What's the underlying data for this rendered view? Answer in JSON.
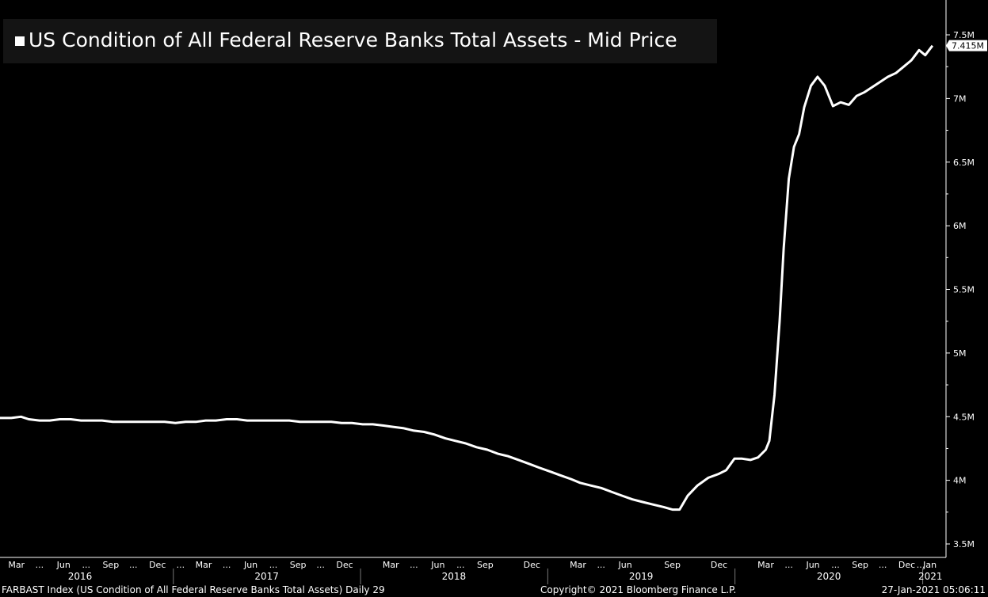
{
  "chart_data": {
    "type": "line",
    "title": "US Condition of All Federal Reserve Banks Total Assets - Mid Price",
    "series_color": "#ffffff",
    "background": "#000000",
    "ylim": [
      3.5,
      7.7
    ],
    "y_ticks": [
      3.5,
      4,
      4.5,
      5,
      5.5,
      6,
      6.5,
      7,
      7.5
    ],
    "y_tick_labels": [
      "3.5M",
      "4M",
      "4.5M",
      "5M",
      "5.5M",
      "6M",
      "6.5M",
      "7M",
      "7.5M"
    ],
    "last_value_label": "7.415M",
    "last_value": 7.415,
    "xlim": [
      "2016-01-29",
      "2021-01-31"
    ],
    "month_ticks": [
      {
        "date": "2016-03-01",
        "label": "Mar"
      },
      {
        "date": "2016-04-15",
        "label": "..."
      },
      {
        "date": "2016-06-01",
        "label": "Jun"
      },
      {
        "date": "2016-07-15",
        "label": "..."
      },
      {
        "date": "2016-09-01",
        "label": "Sep"
      },
      {
        "date": "2016-10-15",
        "label": "..."
      },
      {
        "date": "2016-12-01",
        "label": "Dec"
      },
      {
        "date": "2017-01-15",
        "label": "..."
      },
      {
        "date": "2017-03-01",
        "label": "Mar"
      },
      {
        "date": "2017-04-15",
        "label": "..."
      },
      {
        "date": "2017-06-01",
        "label": "Jun"
      },
      {
        "date": "2017-07-15",
        "label": "..."
      },
      {
        "date": "2017-09-01",
        "label": "Sep"
      },
      {
        "date": "2017-10-15",
        "label": "..."
      },
      {
        "date": "2017-12-01",
        "label": "Dec"
      },
      {
        "date": "2018-03-01",
        "label": "Mar"
      },
      {
        "date": "2018-04-15",
        "label": "..."
      },
      {
        "date": "2018-06-01",
        "label": "Jun"
      },
      {
        "date": "2018-07-15",
        "label": "..."
      },
      {
        "date": "2018-09-01",
        "label": "Sep"
      },
      {
        "date": "2018-12-01",
        "label": "Dec"
      },
      {
        "date": "2019-03-01",
        "label": "Mar"
      },
      {
        "date": "2019-04-15",
        "label": "..."
      },
      {
        "date": "2019-06-01",
        "label": "Jun"
      },
      {
        "date": "2019-09-01",
        "label": "Sep"
      },
      {
        "date": "2019-12-01",
        "label": "Dec"
      },
      {
        "date": "2020-03-01",
        "label": "Mar"
      },
      {
        "date": "2020-04-15",
        "label": "..."
      },
      {
        "date": "2020-06-01",
        "label": "Jun"
      },
      {
        "date": "2020-07-15",
        "label": "..."
      },
      {
        "date": "2020-09-01",
        "label": "Sep"
      },
      {
        "date": "2020-10-15",
        "label": "..."
      },
      {
        "date": "2020-12-01",
        "label": "Dec"
      },
      {
        "date": "2020-12-28",
        "label": "..."
      },
      {
        "date": "2021-01-15",
        "label": "Jan"
      }
    ],
    "year_boundaries": [
      "2017-01-01",
      "2018-01-01",
      "2019-01-01",
      "2020-01-01",
      "2021-01-01"
    ],
    "years": [
      {
        "label": "2016",
        "center": "2016-07-03"
      },
      {
        "label": "2017",
        "center": "2017-07-02"
      },
      {
        "label": "2018",
        "center": "2018-07-02"
      },
      {
        "label": "2019",
        "center": "2019-07-02"
      },
      {
        "label": "2020",
        "center": "2020-07-02"
      },
      {
        "label": "2021",
        "center": "2021-01-16"
      }
    ],
    "points": [
      [
        "2016-01-29",
        4.49
      ],
      [
        "2016-02-20",
        4.49
      ],
      [
        "2016-03-10",
        4.5
      ],
      [
        "2016-03-25",
        4.48
      ],
      [
        "2016-04-15",
        4.47
      ],
      [
        "2016-05-05",
        4.47
      ],
      [
        "2016-05-25",
        4.48
      ],
      [
        "2016-06-15",
        4.48
      ],
      [
        "2016-07-05",
        4.47
      ],
      [
        "2016-07-25",
        4.47
      ],
      [
        "2016-08-15",
        4.47
      ],
      [
        "2016-09-05",
        4.46
      ],
      [
        "2016-09-25",
        4.46
      ],
      [
        "2016-10-15",
        4.46
      ],
      [
        "2016-11-05",
        4.46
      ],
      [
        "2016-11-25",
        4.46
      ],
      [
        "2016-12-15",
        4.46
      ],
      [
        "2017-01-05",
        4.45
      ],
      [
        "2017-01-25",
        4.46
      ],
      [
        "2017-02-15",
        4.46
      ],
      [
        "2017-03-05",
        4.47
      ],
      [
        "2017-03-25",
        4.47
      ],
      [
        "2017-04-15",
        4.48
      ],
      [
        "2017-05-05",
        4.48
      ],
      [
        "2017-05-25",
        4.47
      ],
      [
        "2017-06-15",
        4.47
      ],
      [
        "2017-07-05",
        4.47
      ],
      [
        "2017-07-25",
        4.47
      ],
      [
        "2017-08-15",
        4.47
      ],
      [
        "2017-09-05",
        4.46
      ],
      [
        "2017-09-25",
        4.46
      ],
      [
        "2017-10-15",
        4.46
      ],
      [
        "2017-11-05",
        4.46
      ],
      [
        "2017-11-25",
        4.45
      ],
      [
        "2017-12-15",
        4.45
      ],
      [
        "2018-01-05",
        4.44
      ],
      [
        "2018-01-25",
        4.44
      ],
      [
        "2018-02-15",
        4.43
      ],
      [
        "2018-03-05",
        4.42
      ],
      [
        "2018-03-25",
        4.41
      ],
      [
        "2018-04-15",
        4.39
      ],
      [
        "2018-05-05",
        4.38
      ],
      [
        "2018-05-25",
        4.36
      ],
      [
        "2018-06-15",
        4.33
      ],
      [
        "2018-07-05",
        4.31
      ],
      [
        "2018-07-25",
        4.29
      ],
      [
        "2018-08-15",
        4.26
      ],
      [
        "2018-09-05",
        4.24
      ],
      [
        "2018-09-25",
        4.21
      ],
      [
        "2018-10-15",
        4.19
      ],
      [
        "2018-11-05",
        4.16
      ],
      [
        "2018-11-25",
        4.13
      ],
      [
        "2018-12-15",
        4.1
      ],
      [
        "2019-01-05",
        4.07
      ],
      [
        "2019-01-25",
        4.04
      ],
      [
        "2019-02-15",
        4.01
      ],
      [
        "2019-03-05",
        3.98
      ],
      [
        "2019-03-25",
        3.96
      ],
      [
        "2019-04-15",
        3.94
      ],
      [
        "2019-05-05",
        3.91
      ],
      [
        "2019-05-25",
        3.88
      ],
      [
        "2019-06-15",
        3.85
      ],
      [
        "2019-07-05",
        3.83
      ],
      [
        "2019-07-25",
        3.81
      ],
      [
        "2019-08-15",
        3.79
      ],
      [
        "2019-09-01",
        3.77
      ],
      [
        "2019-09-15",
        3.77
      ],
      [
        "2019-10-01",
        3.88
      ],
      [
        "2019-10-20",
        3.96
      ],
      [
        "2019-11-10",
        4.02
      ],
      [
        "2019-11-30",
        4.05
      ],
      [
        "2019-12-15",
        4.08
      ],
      [
        "2019-12-31",
        4.17
      ],
      [
        "2020-01-15",
        4.17
      ],
      [
        "2020-01-31",
        4.16
      ],
      [
        "2020-02-15",
        4.18
      ],
      [
        "2020-03-01",
        4.24
      ],
      [
        "2020-03-08",
        4.31
      ],
      [
        "2020-03-18",
        4.67
      ],
      [
        "2020-03-28",
        5.25
      ],
      [
        "2020-04-05",
        5.82
      ],
      [
        "2020-04-15",
        6.37
      ],
      [
        "2020-04-25",
        6.62
      ],
      [
        "2020-05-05",
        6.72
      ],
      [
        "2020-05-15",
        6.93
      ],
      [
        "2020-05-28",
        7.1
      ],
      [
        "2020-06-10",
        7.17
      ],
      [
        "2020-06-24",
        7.1
      ],
      [
        "2020-07-10",
        6.94
      ],
      [
        "2020-07-25",
        6.97
      ],
      [
        "2020-08-10",
        6.95
      ],
      [
        "2020-08-25",
        7.02
      ],
      [
        "2020-09-10",
        7.05
      ],
      [
        "2020-09-25",
        7.09
      ],
      [
        "2020-10-10",
        7.13
      ],
      [
        "2020-10-25",
        7.17
      ],
      [
        "2020-11-10",
        7.2
      ],
      [
        "2020-11-25",
        7.25
      ],
      [
        "2020-12-10",
        7.3
      ],
      [
        "2020-12-25",
        7.38
      ],
      [
        "2021-01-06",
        7.34
      ],
      [
        "2021-01-20",
        7.415
      ]
    ]
  },
  "footer": {
    "left": "FARBAST Index (US Condition of All Federal Reserve Banks Total Assets)  Daily 29",
    "center": "Copyright© 2021 Bloomberg Finance L.P.",
    "right": "27-Jan-2021 05:06:11"
  }
}
